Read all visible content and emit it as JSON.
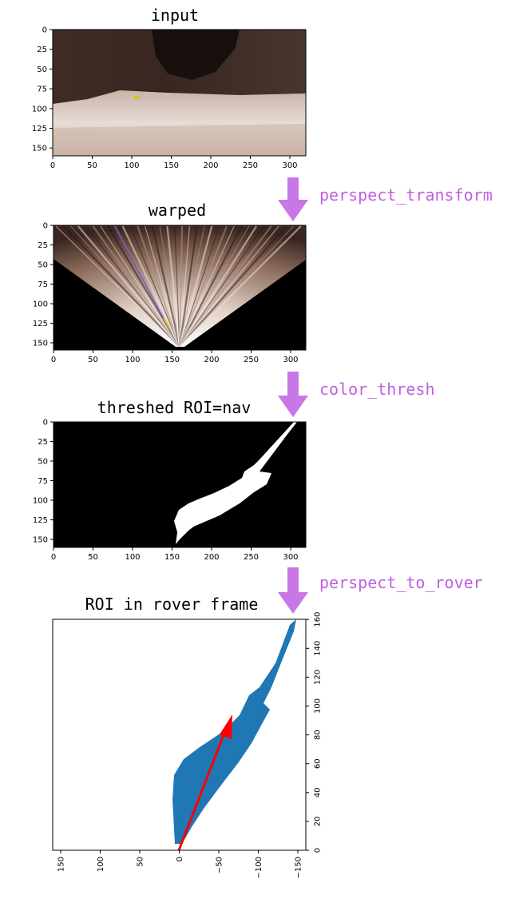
{
  "colors": {
    "accent": "#c878e6",
    "scatter": "#1f77b4",
    "arrow": "#ff0000"
  },
  "panels": {
    "input": {
      "title": "input",
      "x_ticks": [
        "0",
        "50",
        "100",
        "150",
        "200",
        "250",
        "300"
      ],
      "y_ticks": [
        "0",
        "25",
        "50",
        "75",
        "100",
        "125",
        "150"
      ]
    },
    "warped": {
      "title": "warped",
      "x_ticks": [
        "0",
        "50",
        "100",
        "150",
        "200",
        "250",
        "300"
      ],
      "y_ticks": [
        "0",
        "25",
        "50",
        "75",
        "100",
        "125",
        "150"
      ]
    },
    "threshed": {
      "title": "threshed ROI=nav",
      "x_ticks": [
        "0",
        "50",
        "100",
        "150",
        "200",
        "250",
        "300"
      ],
      "y_ticks": [
        "0",
        "25",
        "50",
        "75",
        "100",
        "125",
        "150"
      ]
    },
    "rover": {
      "title": "ROI in rover frame",
      "x_ticks": [
        "150",
        "100",
        "50",
        "0",
        "−50",
        "−100",
        "−150"
      ],
      "y_ticks": [
        "0",
        "20",
        "40",
        "60",
        "80",
        "100",
        "120",
        "140",
        "160"
      ]
    }
  },
  "steps": [
    {
      "label": "perspect_transform",
      "icon": "down-arrow-icon"
    },
    {
      "label": "color_thresh",
      "icon": "down-arrow-icon"
    },
    {
      "label": "perspect_to_rover",
      "icon": "down-arrow-icon"
    }
  ]
}
